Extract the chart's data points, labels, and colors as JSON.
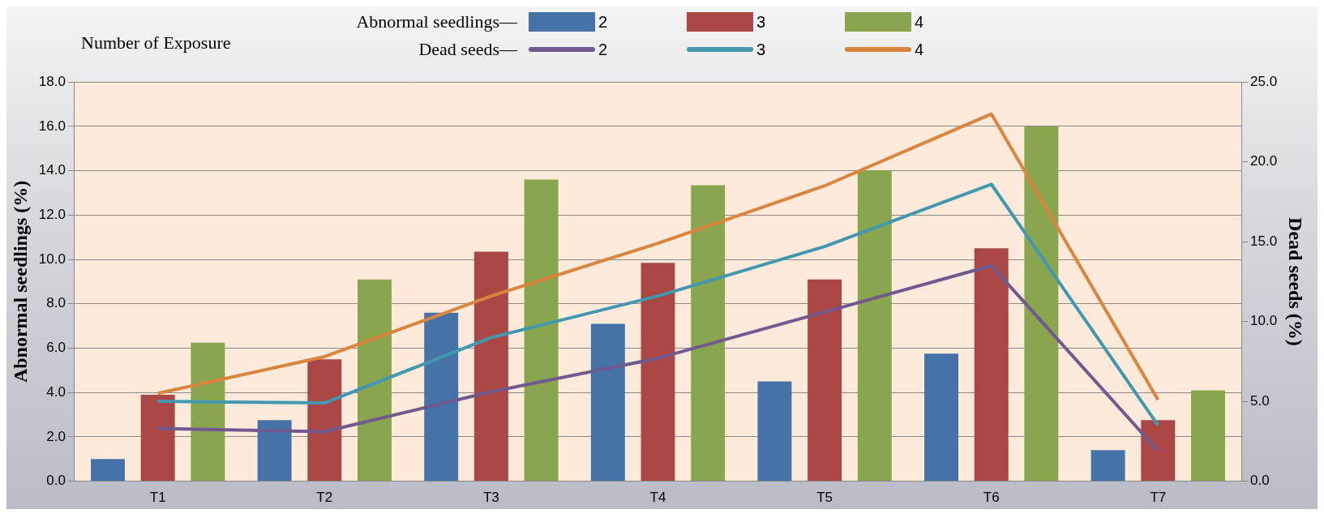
{
  "chart_data": {
    "type": "bar",
    "legend_title": "Number of Exposure",
    "ylabel": "Abnormal seedlings (%)",
    "y2label": "Dead seeds (%)",
    "categories": [
      "T1",
      "T2",
      "T3",
      "T4",
      "T5",
      "T6",
      "T7"
    ],
    "series": [
      {
        "name": "2",
        "color": "#4572a7",
        "values": [
          1.0,
          2.75,
          7.6,
          7.1,
          4.5,
          5.75,
          1.4
        ]
      },
      {
        "name": "3",
        "color": "#aa4643",
        "values": [
          3.9,
          5.5,
          10.35,
          9.85,
          9.1,
          10.5,
          2.75
        ]
      },
      {
        "name": "4",
        "color": "#89a54e",
        "values": [
          6.25,
          9.1,
          13.6,
          13.35,
          14.0,
          16.0,
          4.1
        ]
      },
      {
        "name": "2",
        "type": "line",
        "axis": "y2",
        "color": "#71588f",
        "values": [
          3.3,
          3.1,
          5.6,
          7.7,
          10.6,
          13.5,
          1.9
        ]
      },
      {
        "name": "3",
        "type": "line",
        "axis": "y2",
        "color": "#4198af",
        "values": [
          5.0,
          4.9,
          9.0,
          11.6,
          14.7,
          18.6,
          3.5
        ]
      },
      {
        "name": "4",
        "type": "line",
        "axis": "y2",
        "color": "#db843d",
        "values": [
          5.5,
          7.8,
          11.6,
          14.9,
          18.5,
          23.0,
          5.1
        ]
      }
    ],
    "annotations": [
      "Abnormal seedlings—",
      "Dead seeds—"
    ],
    "ylim": [
      0,
      18
    ],
    "yticks": [
      {
        "value": 0,
        "label": "0.0"
      },
      {
        "value": 2,
        "label": "2.0"
      },
      {
        "value": 4,
        "label": "4.0"
      },
      {
        "value": 6,
        "label": "6.0"
      },
      {
        "value": 8,
        "label": "8.0"
      },
      {
        "value": 10,
        "label": "10.0"
      },
      {
        "value": 12,
        "label": "12.0"
      },
      {
        "value": 14,
        "label": "14.0"
      },
      {
        "value": 16,
        "label": "16.0"
      },
      {
        "value": 18,
        "label": "18.0"
      }
    ],
    "y2lim": [
      0,
      25
    ],
    "y2ticks": [
      {
        "value": 0,
        "label": "0.0"
      },
      {
        "value": 5,
        "label": "5.0"
      },
      {
        "value": 10,
        "label": "10.0"
      },
      {
        "value": 15,
        "label": "15.0"
      },
      {
        "value": 20,
        "label": "20.0"
      },
      {
        "value": 25,
        "label": "25.0"
      }
    ],
    "grid": "y",
    "legend": "top",
    "marker": "none",
    "line_style": "solid"
  }
}
